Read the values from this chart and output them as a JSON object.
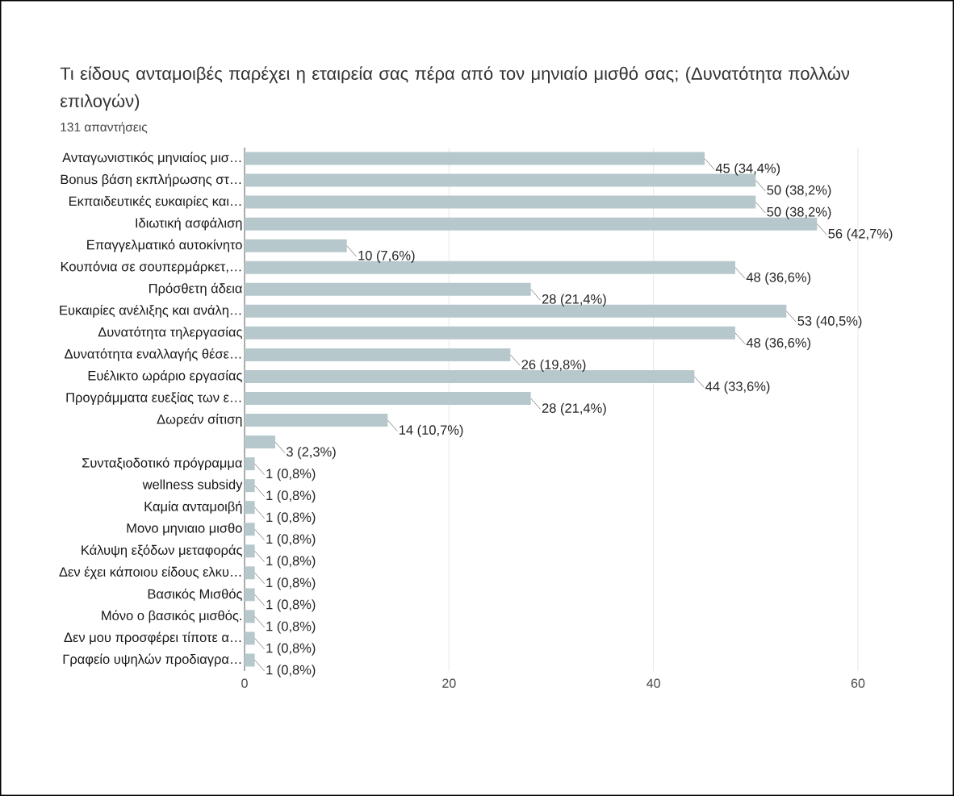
{
  "chart_data": {
    "type": "bar",
    "orientation": "horizontal",
    "title": "Τι είδους ανταμοιβές παρέχει η εταιρεία σας πέρα από τον μηνιαίο μισθό σας; (Δυνατότητα πολλών επιλογών)",
    "subtitle": "131 απαντήσεις",
    "categories": [
      "Ανταγωνιστικός μηνιαίος μισ…",
      "Bonus βάση εκπλήρωσης στ…",
      "Εκπαιδευτικές ευκαιρίες και…",
      "Ιδιωτική ασφάλιση",
      "Επαγγελματικό αυτοκίνητο",
      "Κουπόνια σε σουπερμάρκετ,…",
      "Πρόσθετη άδεια",
      "Ευκαιρίες ανέλιξης και ανάλη…",
      "Δυνατότητα τηλεργασίας",
      "Δυνατότητα εναλλαγής θέσε…",
      "Ευέλικτο ωράριο εργασίας",
      "Προγράμματα ευεξίας των ε…",
      "Δωρεάν σίτιση",
      null,
      "Συνταξιοδοτικό πρόγραμμα",
      "wellness subsidy",
      "Καμία ανταμοιβή",
      "Μονο μηνιαιο μισθο",
      "Κάλυψη εξόδων μεταφοράς",
      "Δεν έχει κάποιου είδους ελκυ…",
      "Βασικός Μισθός",
      "Μόνο ο βασικός μισθός.",
      "Δεν μου προσφέρει τίποτε α…",
      "Γραφείο υψηλών προδιαγρα…"
    ],
    "values": [
      45,
      50,
      50,
      56,
      10,
      48,
      28,
      53,
      48,
      26,
      44,
      28,
      14,
      3,
      1,
      1,
      1,
      1,
      1,
      1,
      1,
      1,
      1,
      1
    ],
    "value_labels": [
      "45 (34,4%)",
      "50 (38,2%)",
      "50 (38,2%)",
      "56 (42,7%)",
      "10 (7,6%)",
      "48 (36,6%)",
      "28 (21,4%)",
      "53 (40,5%)",
      "48 (36,6%)",
      "26 (19,8%)",
      "44 (33,6%)",
      "28 (21,4%)",
      "14 (10,7%)",
      "3 (2,3%)",
      "1 (0,8%)",
      "1 (0,8%)",
      "1 (0,8%)",
      "1 (0,8%)",
      "1 (0,8%)",
      "1 (0,8%)",
      "1 (0,8%)",
      "1 (0,8%)",
      "1 (0,8%)",
      "1 (0,8%)"
    ],
    "color": "#b7c8cc",
    "xlim": [
      0,
      60
    ],
    "xticks": [
      0,
      20,
      40,
      60
    ],
    "grid": "x"
  }
}
